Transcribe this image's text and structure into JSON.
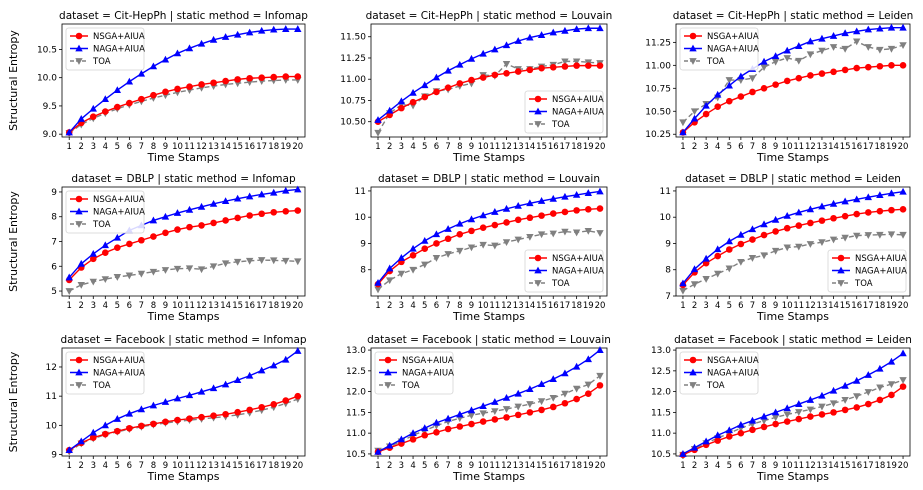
{
  "figure": {
    "x_label": "Time Stamps",
    "y_label": "Structural Entropy",
    "series_styles": [
      {
        "name": "NSGA+AIUA",
        "color": "#ff0000",
        "marker": "circle",
        "dash": false
      },
      {
        "name": "NAGA+AIUA",
        "color": "#0000ff",
        "marker": "triangle-up",
        "dash": false
      },
      {
        "name": "TOA",
        "color": "#808080",
        "marker": "triangle-down",
        "dash": true
      }
    ]
  },
  "chart_data": [
    {
      "type": "line",
      "title": "dataset = Cit-HepPh | static method = Infomap",
      "xlabel": "Time Stamps",
      "ylabel": "Structural Entropy",
      "x": [
        1,
        2,
        3,
        4,
        5,
        6,
        7,
        8,
        9,
        10,
        11,
        12,
        13,
        14,
        15,
        16,
        17,
        18,
        19,
        20
      ],
      "ylim": [
        8.95,
        10.95
      ],
      "yticks": [
        "9.0",
        "9.5",
        "10.0",
        "10.5"
      ],
      "legend": "upper-left",
      "series": [
        {
          "name": "NSGA+AIUA",
          "values": [
            9.03,
            9.2,
            9.31,
            9.4,
            9.48,
            9.55,
            9.62,
            9.69,
            9.75,
            9.8,
            9.84,
            9.88,
            9.91,
            9.94,
            9.97,
            9.99,
            10.0,
            10.01,
            10.02,
            10.02
          ]
        },
        {
          "name": "NAGA+AIUA",
          "values": [
            9.03,
            9.27,
            9.45,
            9.62,
            9.78,
            9.93,
            10.07,
            10.2,
            10.32,
            10.43,
            10.52,
            10.6,
            10.67,
            10.72,
            10.76,
            10.8,
            10.83,
            10.85,
            10.86,
            10.86
          ]
        },
        {
          "name": "TOA",
          "values": [
            9.02,
            9.17,
            9.28,
            9.37,
            9.45,
            9.52,
            9.58,
            9.64,
            9.69,
            9.74,
            9.78,
            9.82,
            9.85,
            9.88,
            9.9,
            9.92,
            9.94,
            9.95,
            9.96,
            9.96
          ]
        }
      ]
    },
    {
      "type": "line",
      "title": "dataset = Cit-HepPh | static method = Louvain",
      "xlabel": "Time Stamps",
      "ylabel": "",
      "x": [
        1,
        2,
        3,
        4,
        5,
        6,
        7,
        8,
        9,
        10,
        11,
        12,
        13,
        14,
        15,
        16,
        17,
        18,
        19,
        20
      ],
      "ylim": [
        10.32,
        11.65
      ],
      "yticks": [
        "10.50",
        "10.75",
        "11.00",
        "11.25",
        "11.50"
      ],
      "legend": "lower-right",
      "series": [
        {
          "name": "NSGA+AIUA",
          "values": [
            10.5,
            10.58,
            10.66,
            10.73,
            10.79,
            10.85,
            10.9,
            10.95,
            10.99,
            11.02,
            11.05,
            11.07,
            11.09,
            11.11,
            11.13,
            11.14,
            11.15,
            11.16,
            11.16,
            11.16
          ]
        },
        {
          "name": "NAGA+AIUA",
          "values": [
            10.52,
            10.63,
            10.74,
            10.84,
            10.93,
            11.02,
            11.1,
            11.17,
            11.24,
            11.3,
            11.35,
            11.4,
            11.45,
            11.49,
            11.52,
            11.55,
            11.57,
            11.59,
            11.6,
            11.6
          ]
        },
        {
          "name": "TOA",
          "values": [
            10.37,
            10.6,
            10.7,
            10.69,
            10.8,
            10.86,
            10.88,
            10.92,
            10.95,
            11.05,
            11.04,
            11.18,
            11.12,
            11.12,
            11.15,
            11.17,
            11.21,
            11.21,
            11.2,
            11.19
          ]
        }
      ]
    },
    {
      "type": "line",
      "title": "dataset = Cit-HepPh | static method = Leiden",
      "xlabel": "Time Stamps",
      "ylabel": "",
      "x": [
        1,
        2,
        3,
        4,
        5,
        6,
        7,
        8,
        9,
        10,
        11,
        12,
        13,
        14,
        15,
        16,
        17,
        18,
        19,
        20
      ],
      "ylim": [
        10.22,
        11.45
      ],
      "yticks": [
        "10.25",
        "10.50",
        "10.75",
        "11.00",
        "11.25"
      ],
      "legend": "upper-left",
      "series": [
        {
          "name": "NSGA+AIUA",
          "values": [
            10.27,
            10.38,
            10.47,
            10.55,
            10.61,
            10.66,
            10.71,
            10.75,
            10.79,
            10.83,
            10.86,
            10.89,
            10.91,
            10.93,
            10.95,
            10.97,
            10.98,
            10.99,
            11.0,
            11.0
          ]
        },
        {
          "name": "NAGA+AIUA",
          "values": [
            10.27,
            10.42,
            10.56,
            10.68,
            10.78,
            10.88,
            10.96,
            11.04,
            11.1,
            11.16,
            11.21,
            11.26,
            11.29,
            11.32,
            11.35,
            11.37,
            11.39,
            11.4,
            11.41,
            11.41
          ]
        },
        {
          "name": "TOA",
          "values": [
            10.38,
            10.5,
            10.58,
            10.65,
            10.84,
            10.84,
            10.86,
            10.98,
            11.04,
            11.08,
            11.05,
            11.12,
            11.16,
            11.2,
            11.18,
            11.26,
            11.2,
            11.17,
            11.18,
            11.22
          ]
        }
      ]
    },
    {
      "type": "line",
      "title": "dataset = DBLP | static method = Infomap",
      "xlabel": "Time Stamps",
      "ylabel": "Structural Entropy",
      "x": [
        1,
        2,
        3,
        4,
        5,
        6,
        7,
        8,
        9,
        10,
        11,
        12,
        13,
        14,
        15,
        16,
        17,
        18,
        19,
        20
      ],
      "ylim": [
        4.8,
        9.2
      ],
      "yticks": [
        "5",
        "6",
        "7",
        "8",
        "9"
      ],
      "legend": "upper-left",
      "series": [
        {
          "name": "NSGA+AIUA",
          "values": [
            5.45,
            5.95,
            6.3,
            6.55,
            6.75,
            6.9,
            7.05,
            7.2,
            7.35,
            7.48,
            7.58,
            7.65,
            7.75,
            7.85,
            7.95,
            8.05,
            8.12,
            8.18,
            8.22,
            8.25
          ]
        },
        {
          "name": "NAGA+AIUA",
          "values": [
            5.55,
            6.1,
            6.5,
            6.85,
            7.15,
            7.45,
            7.65,
            7.85,
            8.0,
            8.15,
            8.28,
            8.4,
            8.52,
            8.63,
            8.73,
            8.82,
            8.9,
            8.97,
            9.05,
            9.1
          ]
        },
        {
          "name": "TOA",
          "values": [
            5.0,
            5.25,
            5.38,
            5.48,
            5.57,
            5.63,
            5.7,
            5.78,
            5.85,
            5.9,
            5.92,
            5.88,
            6.0,
            6.12,
            6.18,
            6.22,
            6.25,
            6.24,
            6.22,
            6.2
          ]
        }
      ]
    },
    {
      "type": "line",
      "title": "dataset = DBLP | static method = Louvain",
      "xlabel": "Time Stamps",
      "ylabel": "",
      "x": [
        1,
        2,
        3,
        4,
        5,
        6,
        7,
        8,
        9,
        10,
        11,
        12,
        13,
        14,
        15,
        16,
        17,
        18,
        19,
        20
      ],
      "ylim": [
        7.0,
        11.15
      ],
      "yticks": [
        "8",
        "9",
        "10",
        "11"
      ],
      "legend": "lower-right",
      "series": [
        {
          "name": "NSGA+AIUA",
          "values": [
            7.45,
            7.95,
            8.3,
            8.55,
            8.8,
            9.0,
            9.18,
            9.35,
            9.48,
            9.6,
            9.7,
            9.8,
            9.9,
            9.98,
            10.06,
            10.14,
            10.2,
            10.26,
            10.3,
            10.33
          ]
        },
        {
          "name": "NAGA+AIUA",
          "values": [
            7.5,
            8.05,
            8.45,
            8.8,
            9.1,
            9.35,
            9.55,
            9.75,
            9.92,
            10.07,
            10.2,
            10.32,
            10.43,
            10.53,
            10.62,
            10.7,
            10.78,
            10.85,
            10.92,
            10.98
          ]
        },
        {
          "name": "TOA",
          "values": [
            7.25,
            7.6,
            7.85,
            8.0,
            8.2,
            8.45,
            8.6,
            8.72,
            8.85,
            8.95,
            8.92,
            9.05,
            9.15,
            9.25,
            9.35,
            9.38,
            9.45,
            9.42,
            9.48,
            9.4
          ]
        }
      ]
    },
    {
      "type": "line",
      "title": "dataset = DBLP | static method = Leiden",
      "xlabel": "Time Stamps",
      "ylabel": "",
      "x": [
        1,
        2,
        3,
        4,
        5,
        6,
        7,
        8,
        9,
        10,
        11,
        12,
        13,
        14,
        15,
        16,
        17,
        18,
        19,
        20
      ],
      "ylim": [
        7.0,
        11.15
      ],
      "yticks": [
        "7",
        "8",
        "9",
        "10",
        "11"
      ],
      "legend": "lower-right",
      "series": [
        {
          "name": "NSGA+AIUA",
          "values": [
            7.42,
            7.9,
            8.25,
            8.52,
            8.77,
            8.98,
            9.15,
            9.32,
            9.46,
            9.58,
            9.68,
            9.78,
            9.87,
            9.96,
            10.04,
            10.12,
            10.18,
            10.23,
            10.27,
            10.3
          ]
        },
        {
          "name": "NAGA+AIUA",
          "values": [
            7.48,
            8.02,
            8.42,
            8.78,
            9.08,
            9.33,
            9.54,
            9.73,
            9.9,
            10.05,
            10.18,
            10.3,
            10.41,
            10.51,
            10.6,
            10.68,
            10.76,
            10.84,
            10.91,
            10.97
          ]
        },
        {
          "name": "TOA",
          "values": [
            7.2,
            7.45,
            7.65,
            7.85,
            8.05,
            8.3,
            8.45,
            8.55,
            8.72,
            8.85,
            8.88,
            8.98,
            9.05,
            9.15,
            9.22,
            9.3,
            9.32,
            9.33,
            9.35,
            9.33
          ]
        }
      ]
    },
    {
      "type": "line",
      "title": "dataset = Facebook | static method = Infomap",
      "xlabel": "Time Stamps",
      "ylabel": "Structural Entropy",
      "x": [
        1,
        2,
        3,
        4,
        5,
        6,
        7,
        8,
        9,
        10,
        11,
        12,
        13,
        14,
        15,
        16,
        17,
        18,
        19,
        20
      ],
      "ylim": [
        8.95,
        12.65
      ],
      "yticks": [
        "9",
        "10",
        "11",
        "12"
      ],
      "legend": "upper-left",
      "series": [
        {
          "name": "NSGA+AIUA",
          "values": [
            9.15,
            9.4,
            9.58,
            9.7,
            9.8,
            9.9,
            9.98,
            10.05,
            10.12,
            10.18,
            10.23,
            10.28,
            10.33,
            10.38,
            10.45,
            10.53,
            10.62,
            10.72,
            10.85,
            11.0
          ]
        },
        {
          "name": "NAGA+AIUA",
          "values": [
            9.15,
            9.45,
            9.75,
            10.0,
            10.22,
            10.4,
            10.55,
            10.68,
            10.8,
            10.92,
            11.03,
            11.15,
            11.27,
            11.4,
            11.55,
            11.7,
            11.88,
            12.05,
            12.25,
            12.55
          ]
        },
        {
          "name": "TOA",
          "values": [
            9.1,
            9.38,
            9.55,
            9.68,
            9.78,
            9.87,
            9.95,
            10.02,
            10.08,
            10.13,
            10.18,
            10.22,
            10.26,
            10.3,
            10.36,
            10.43,
            10.52,
            10.62,
            10.75,
            10.9
          ]
        }
      ]
    },
    {
      "type": "line",
      "title": "dataset = Facebook | static method = Louvain",
      "xlabel": "Time Stamps",
      "ylabel": "",
      "x": [
        1,
        2,
        3,
        4,
        5,
        6,
        7,
        8,
        9,
        10,
        11,
        12,
        13,
        14,
        15,
        16,
        17,
        18,
        19,
        20
      ],
      "ylim": [
        10.45,
        13.05
      ],
      "yticks": [
        "10.5",
        "11.0",
        "11.5",
        "12.0",
        "12.5",
        "13.0"
      ],
      "legend": "upper-left",
      "series": [
        {
          "name": "NSGA+AIUA",
          "values": [
            10.55,
            10.65,
            10.75,
            10.85,
            10.95,
            11.02,
            11.1,
            11.16,
            11.22,
            11.28,
            11.33,
            11.38,
            11.44,
            11.5,
            11.56,
            11.63,
            11.72,
            11.82,
            11.95,
            12.15
          ]
        },
        {
          "name": "NAGA+AIUA",
          "values": [
            10.55,
            10.7,
            10.85,
            11.0,
            11.12,
            11.25,
            11.35,
            11.45,
            11.55,
            11.65,
            11.75,
            11.85,
            11.95,
            12.06,
            12.18,
            12.3,
            12.44,
            12.6,
            12.78,
            13.0
          ]
        },
        {
          "name": "TOA",
          "values": [
            10.58,
            10.68,
            10.8,
            10.95,
            11.06,
            11.18,
            11.28,
            11.36,
            11.43,
            11.48,
            11.53,
            11.58,
            11.64,
            11.7,
            11.77,
            11.85,
            11.95,
            12.07,
            12.17,
            12.38
          ]
        }
      ]
    },
    {
      "type": "line",
      "title": "dataset = Facebook | static method = Leiden",
      "xlabel": "Time Stamps",
      "ylabel": "",
      "x": [
        1,
        2,
        3,
        4,
        5,
        6,
        7,
        8,
        9,
        10,
        11,
        12,
        13,
        14,
        15,
        16,
        17,
        18,
        19,
        20
      ],
      "ylim": [
        10.45,
        13.05
      ],
      "yticks": [
        "10.5",
        "11.0",
        "11.5",
        "12.0",
        "12.5",
        "13.0"
      ],
      "legend": "upper-left",
      "series": [
        {
          "name": "NSGA+AIUA",
          "values": [
            10.48,
            10.6,
            10.72,
            10.82,
            10.92,
            11.0,
            11.08,
            11.15,
            11.22,
            11.28,
            11.34,
            11.4,
            11.45,
            11.5,
            11.56,
            11.62,
            11.7,
            11.8,
            11.92,
            12.12
          ]
        },
        {
          "name": "NAGA+AIUA",
          "values": [
            10.5,
            10.65,
            10.8,
            10.95,
            11.07,
            11.2,
            11.3,
            11.4,
            11.5,
            11.6,
            11.7,
            11.8,
            11.9,
            12.02,
            12.14,
            12.26,
            12.4,
            12.55,
            12.72,
            12.92
          ]
        },
        {
          "name": "TOA",
          "values": [
            10.48,
            10.62,
            10.76,
            10.88,
            11.0,
            11.12,
            11.22,
            11.3,
            11.38,
            11.45,
            11.51,
            11.57,
            11.64,
            11.72,
            11.8,
            11.89,
            11.99,
            12.1,
            12.18,
            12.28
          ]
        }
      ]
    }
  ]
}
